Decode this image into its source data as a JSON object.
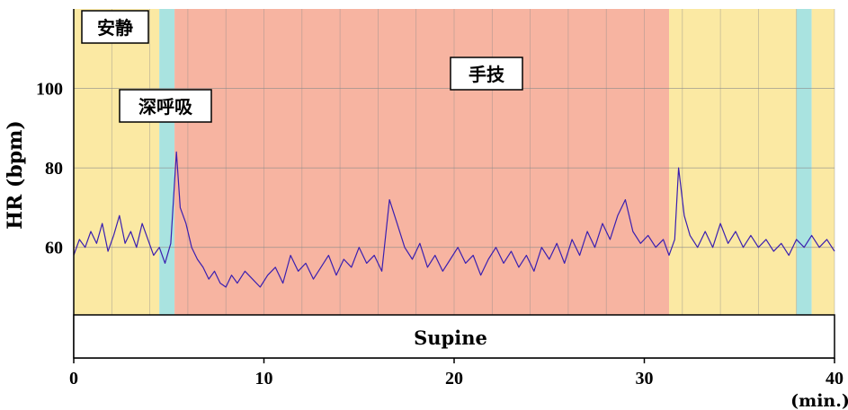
{
  "chart_data": {
    "type": "line",
    "ylabel": "HR (bpm)",
    "xunit": "(min.)",
    "xlim": [
      0,
      40
    ],
    "ylim": [
      43,
      120
    ],
    "yticks": [
      60,
      80,
      100
    ],
    "xticks": [
      0,
      10,
      20,
      30,
      40
    ],
    "grid": true,
    "phases": [
      {
        "label": "安静",
        "start": 0,
        "end": 4.5,
        "color": "#fbe9a3"
      },
      {
        "label": "深呼吸",
        "start": 4.5,
        "end": 5.3,
        "color": "#a9e3e0"
      },
      {
        "label": "手技",
        "start": 5.3,
        "end": 31.3,
        "color": "#f7b4a1"
      },
      {
        "label": "",
        "start": 31.3,
        "end": 38.0,
        "color": "#fbe9a3"
      },
      {
        "label": "",
        "start": 38.0,
        "end": 38.8,
        "color": "#a9e3e0"
      },
      {
        "label": "",
        "start": 38.8,
        "end": 40,
        "color": "#fbe9a3"
      }
    ],
    "posture_label": "Supine",
    "series": [
      {
        "color": "#3a1fb0",
        "points": [
          [
            0,
            58
          ],
          [
            0.3,
            62
          ],
          [
            0.6,
            60
          ],
          [
            0.9,
            64
          ],
          [
            1.2,
            61
          ],
          [
            1.5,
            66
          ],
          [
            1.8,
            59
          ],
          [
            2.1,
            63
          ],
          [
            2.4,
            68
          ],
          [
            2.7,
            61
          ],
          [
            3.0,
            64
          ],
          [
            3.3,
            60
          ],
          [
            3.6,
            66
          ],
          [
            3.9,
            62
          ],
          [
            4.2,
            58
          ],
          [
            4.5,
            60
          ],
          [
            4.8,
            56
          ],
          [
            5.1,
            61
          ],
          [
            5.4,
            84
          ],
          [
            5.6,
            70
          ],
          [
            5.9,
            66
          ],
          [
            6.2,
            60
          ],
          [
            6.5,
            57
          ],
          [
            6.8,
            55
          ],
          [
            7.1,
            52
          ],
          [
            7.4,
            54
          ],
          [
            7.7,
            51
          ],
          [
            8.0,
            50
          ],
          [
            8.3,
            53
          ],
          [
            8.6,
            51
          ],
          [
            9.0,
            54
          ],
          [
            9.4,
            52
          ],
          [
            9.8,
            50
          ],
          [
            10.2,
            53
          ],
          [
            10.6,
            55
          ],
          [
            11.0,
            51
          ],
          [
            11.4,
            58
          ],
          [
            11.8,
            54
          ],
          [
            12.2,
            56
          ],
          [
            12.6,
            52
          ],
          [
            13.0,
            55
          ],
          [
            13.4,
            58
          ],
          [
            13.8,
            53
          ],
          [
            14.2,
            57
          ],
          [
            14.6,
            55
          ],
          [
            15.0,
            60
          ],
          [
            15.4,
            56
          ],
          [
            15.8,
            58
          ],
          [
            16.2,
            54
          ],
          [
            16.6,
            72
          ],
          [
            17.0,
            66
          ],
          [
            17.4,
            60
          ],
          [
            17.8,
            57
          ],
          [
            18.2,
            61
          ],
          [
            18.6,
            55
          ],
          [
            19.0,
            58
          ],
          [
            19.4,
            54
          ],
          [
            19.8,
            57
          ],
          [
            20.2,
            60
          ],
          [
            20.6,
            56
          ],
          [
            21.0,
            58
          ],
          [
            21.4,
            53
          ],
          [
            21.8,
            57
          ],
          [
            22.2,
            60
          ],
          [
            22.6,
            56
          ],
          [
            23.0,
            59
          ],
          [
            23.4,
            55
          ],
          [
            23.8,
            58
          ],
          [
            24.2,
            54
          ],
          [
            24.6,
            60
          ],
          [
            25.0,
            57
          ],
          [
            25.4,
            61
          ],
          [
            25.8,
            56
          ],
          [
            26.2,
            62
          ],
          [
            26.6,
            58
          ],
          [
            27.0,
            64
          ],
          [
            27.4,
            60
          ],
          [
            27.8,
            66
          ],
          [
            28.2,
            62
          ],
          [
            28.6,
            68
          ],
          [
            29.0,
            72
          ],
          [
            29.4,
            64
          ],
          [
            29.8,
            61
          ],
          [
            30.2,
            63
          ],
          [
            30.6,
            60
          ],
          [
            31.0,
            62
          ],
          [
            31.3,
            58
          ],
          [
            31.6,
            62
          ],
          [
            31.8,
            80
          ],
          [
            32.1,
            68
          ],
          [
            32.4,
            63
          ],
          [
            32.8,
            60
          ],
          [
            33.2,
            64
          ],
          [
            33.6,
            60
          ],
          [
            34.0,
            66
          ],
          [
            34.4,
            61
          ],
          [
            34.8,
            64
          ],
          [
            35.2,
            60
          ],
          [
            35.6,
            63
          ],
          [
            36.0,
            60
          ],
          [
            36.4,
            62
          ],
          [
            36.8,
            59
          ],
          [
            37.2,
            61
          ],
          [
            37.6,
            58
          ],
          [
            38.0,
            62
          ],
          [
            38.4,
            60
          ],
          [
            38.8,
            63
          ],
          [
            39.2,
            60
          ],
          [
            39.6,
            62
          ],
          [
            40,
            59
          ]
        ]
      }
    ]
  }
}
